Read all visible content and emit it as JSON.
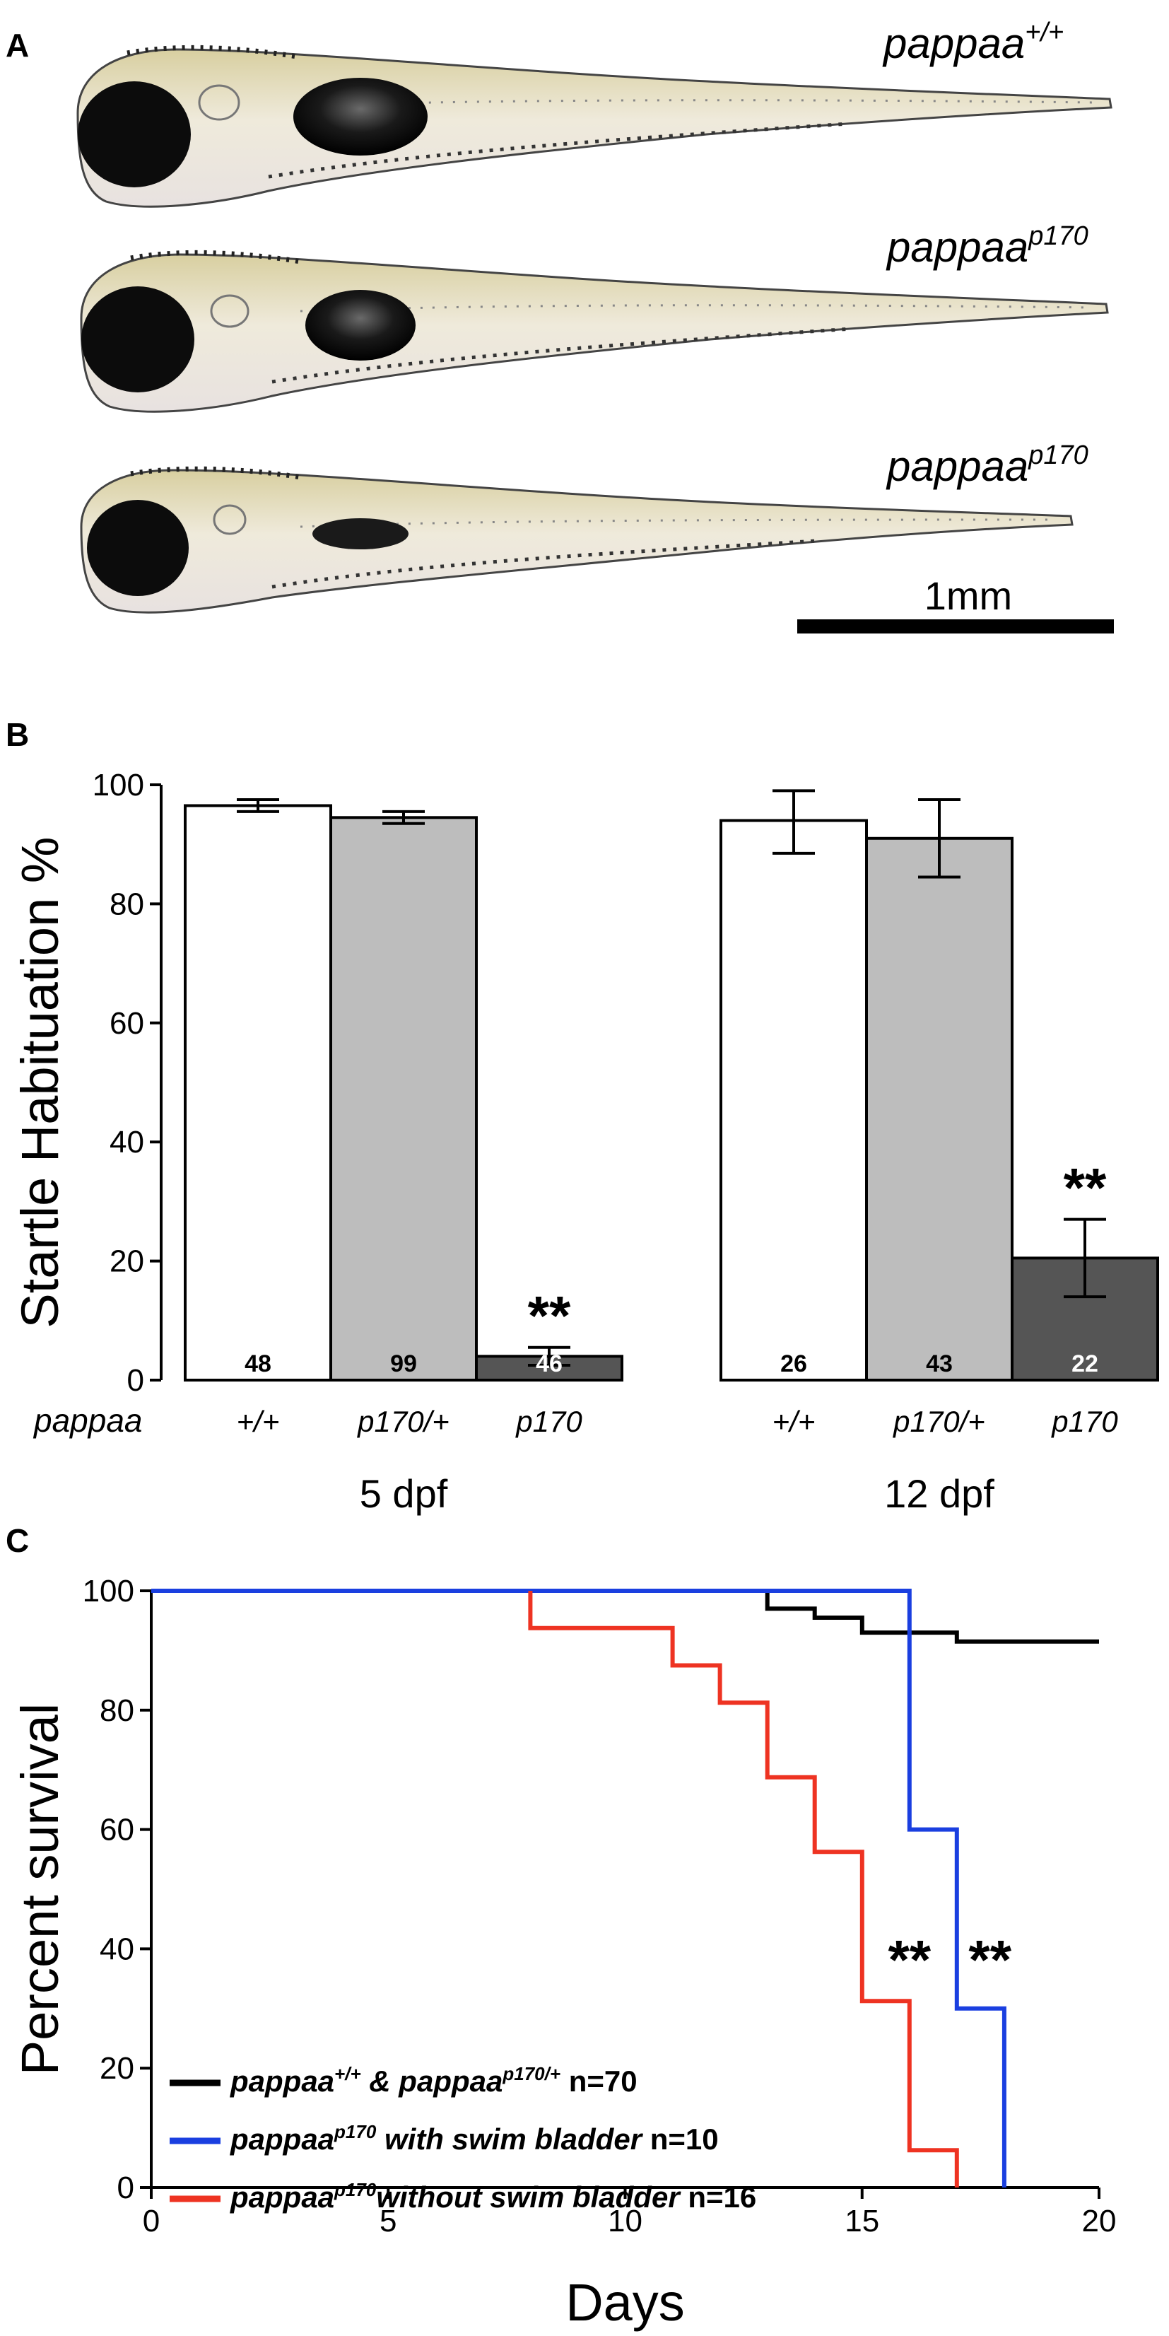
{
  "panel_a": {
    "letter": "A",
    "larvae": [
      {
        "base": "pappaa",
        "sup": "+/+",
        "swim_bladder": "inflated"
      },
      {
        "base": "pappaa",
        "sup": "p170",
        "swim_bladder": "inflated"
      },
      {
        "base": "pappaa",
        "sup": "p170",
        "swim_bladder": "uninflated"
      }
    ],
    "scale_bar_label": "1mm"
  },
  "chart_data": [
    {
      "type": "bar",
      "panel": "B",
      "ylabel": "Startle Habituation %",
      "ylim": [
        0,
        100
      ],
      "yticks": [
        0,
        20,
        40,
        60,
        80,
        100
      ],
      "row_label": "pappaa",
      "groups": [
        {
          "label": "5 dpf",
          "bars": [
            {
              "category": "+/+",
              "value": 96.5,
              "err_low": 95.5,
              "err_high": 97.5,
              "n": "48",
              "color": "#ffffff",
              "n_color": "#000000",
              "star": ""
            },
            {
              "category": "p170/+",
              "value": 94.5,
              "err_low": 93.5,
              "err_high": 95.5,
              "n": "99",
              "color": "#bdbdbd",
              "n_color": "#000000",
              "star": ""
            },
            {
              "category": "p170",
              "value": 4,
              "err_low": 2.5,
              "err_high": 5.5,
              "n": "46",
              "color": "#555555",
              "n_color": "#ffffff",
              "star": "**"
            }
          ]
        },
        {
          "label": "12 dpf",
          "bars": [
            {
              "category": "+/+",
              "value": 94,
              "err_low": 88.5,
              "err_high": 99,
              "n": "26",
              "color": "#ffffff",
              "n_color": "#000000",
              "star": ""
            },
            {
              "category": "p170/+",
              "value": 91,
              "err_low": 84.5,
              "err_high": 97.5,
              "n": "43",
              "color": "#bdbdbd",
              "n_color": "#000000",
              "star": ""
            },
            {
              "category": "p170",
              "value": 20.5,
              "err_low": 14,
              "err_high": 27,
              "n": "22",
              "color": "#555555",
              "n_color": "#ffffff",
              "star": "**"
            }
          ]
        }
      ]
    },
    {
      "type": "line",
      "panel": "C",
      "step": true,
      "xlabel": "Days",
      "ylabel": "Percent survival",
      "xlim": [
        0,
        20
      ],
      "ylim": [
        0,
        100
      ],
      "xticks": [
        0,
        5,
        10,
        15,
        20
      ],
      "yticks": [
        0,
        20,
        40,
        60,
        80,
        100
      ],
      "series": [
        {
          "legend": {
            "parts": [
              [
                "pappaa",
                ""
              ],
              [
                "+/+",
                "sup"
              ],
              [
                " & pappaa",
                ""
              ],
              [
                "p170/+",
                "sup"
              ]
            ],
            "n": "n=70"
          },
          "color": "#000000",
          "points": [
            [
              0,
              100
            ],
            [
              13,
              100
            ],
            [
              13,
              97
            ],
            [
              14,
              97
            ],
            [
              14,
              95.5
            ],
            [
              15,
              95.5
            ],
            [
              15,
              93
            ],
            [
              17,
              93
            ],
            [
              17,
              91.5
            ],
            [
              20,
              91.5
            ]
          ]
        },
        {
          "legend": {
            "parts": [
              [
                "pappaa",
                ""
              ],
              [
                "p170",
                "sup"
              ],
              [
                " with swim bladder",
                ""
              ]
            ],
            "n": "n=10"
          },
          "color": "#1a3fe0",
          "points": [
            [
              0,
              100
            ],
            [
              16,
              100
            ],
            [
              16,
              60
            ],
            [
              17,
              60
            ],
            [
              17,
              30
            ],
            [
              18,
              30
            ],
            [
              18,
              0
            ]
          ]
        },
        {
          "legend": {
            "parts": [
              [
                "pappaa",
                ""
              ],
              [
                "p170",
                "sup"
              ],
              [
                "without swim bladder",
                ""
              ]
            ],
            "n": "n=16"
          },
          "color": "#ee3322",
          "points": [
            [
              8,
              100
            ],
            [
              8,
              93.75
            ],
            [
              11,
              93.75
            ],
            [
              11,
              87.5
            ],
            [
              12,
              87.5
            ],
            [
              12,
              81.25
            ],
            [
              13,
              81.25
            ],
            [
              13,
              68.75
            ],
            [
              14,
              68.75
            ],
            [
              14,
              56.25
            ],
            [
              15,
              56.25
            ],
            [
              15,
              31.25
            ],
            [
              16,
              31.25
            ],
            [
              16,
              6.25
            ],
            [
              17,
              6.25
            ],
            [
              17,
              0
            ]
          ]
        }
      ],
      "annotations": [
        {
          "text": "**",
          "x": 16,
          "y": 40
        },
        {
          "text": "**",
          "x": 17.7,
          "y": 40
        }
      ]
    }
  ]
}
